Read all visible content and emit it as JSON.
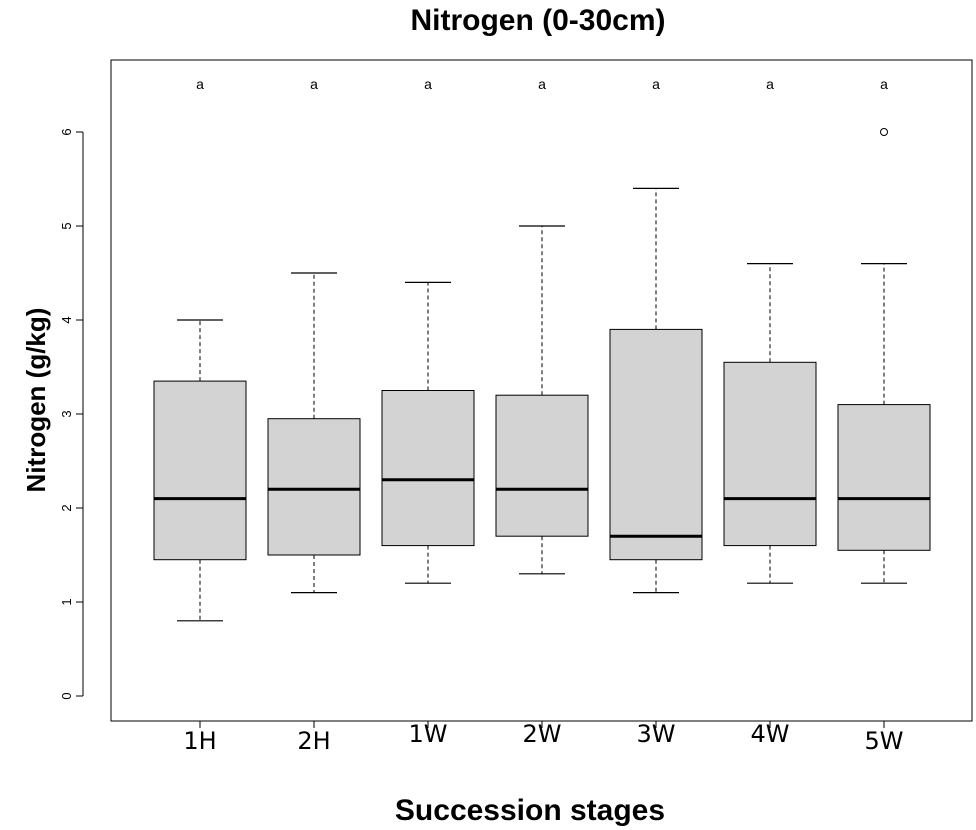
{
  "chart_data": {
    "type": "boxplot",
    "title": "Nitrogen (0-30cm)",
    "xlabel": "Succession stages",
    "ylabel": "Nitrogen (g/kg)",
    "ylim": [
      -0.25,
      6.65
    ],
    "yticks": [
      "0",
      "1",
      "2",
      "3",
      "4",
      "5",
      "6"
    ],
    "grid": false,
    "box_fill": "#d3d3d3",
    "categories": [
      "1H",
      "2H",
      "1W",
      "2W",
      "3W",
      "4W",
      "5W"
    ],
    "groups": [
      {
        "name": "1H",
        "min": 0.8,
        "q1": 1.45,
        "median": 2.1,
        "q3": 3.35,
        "max": 4.0,
        "outliers": [],
        "letter": "a"
      },
      {
        "name": "2H",
        "min": 1.1,
        "q1": 1.5,
        "median": 2.2,
        "q3": 2.95,
        "max": 4.5,
        "outliers": [],
        "letter": "a"
      },
      {
        "name": "1W",
        "min": 1.2,
        "q1": 1.6,
        "median": 2.3,
        "q3": 3.25,
        "max": 4.4,
        "outliers": [],
        "letter": "a"
      },
      {
        "name": "2W",
        "min": 1.3,
        "q1": 1.7,
        "median": 2.2,
        "q3": 3.2,
        "max": 5.0,
        "outliers": [],
        "letter": "a"
      },
      {
        "name": "3W",
        "min": 1.1,
        "q1": 1.45,
        "median": 1.7,
        "q3": 3.9,
        "max": 5.4,
        "outliers": [],
        "letter": "a"
      },
      {
        "name": "4W",
        "min": 1.2,
        "q1": 1.6,
        "median": 2.1,
        "q3": 3.55,
        "max": 4.6,
        "outliers": [],
        "letter": "a"
      },
      {
        "name": "5W",
        "min": 1.2,
        "q1": 1.55,
        "median": 2.1,
        "q3": 3.1,
        "max": 4.6,
        "outliers": [
          6.0
        ],
        "letter": "a"
      }
    ]
  }
}
